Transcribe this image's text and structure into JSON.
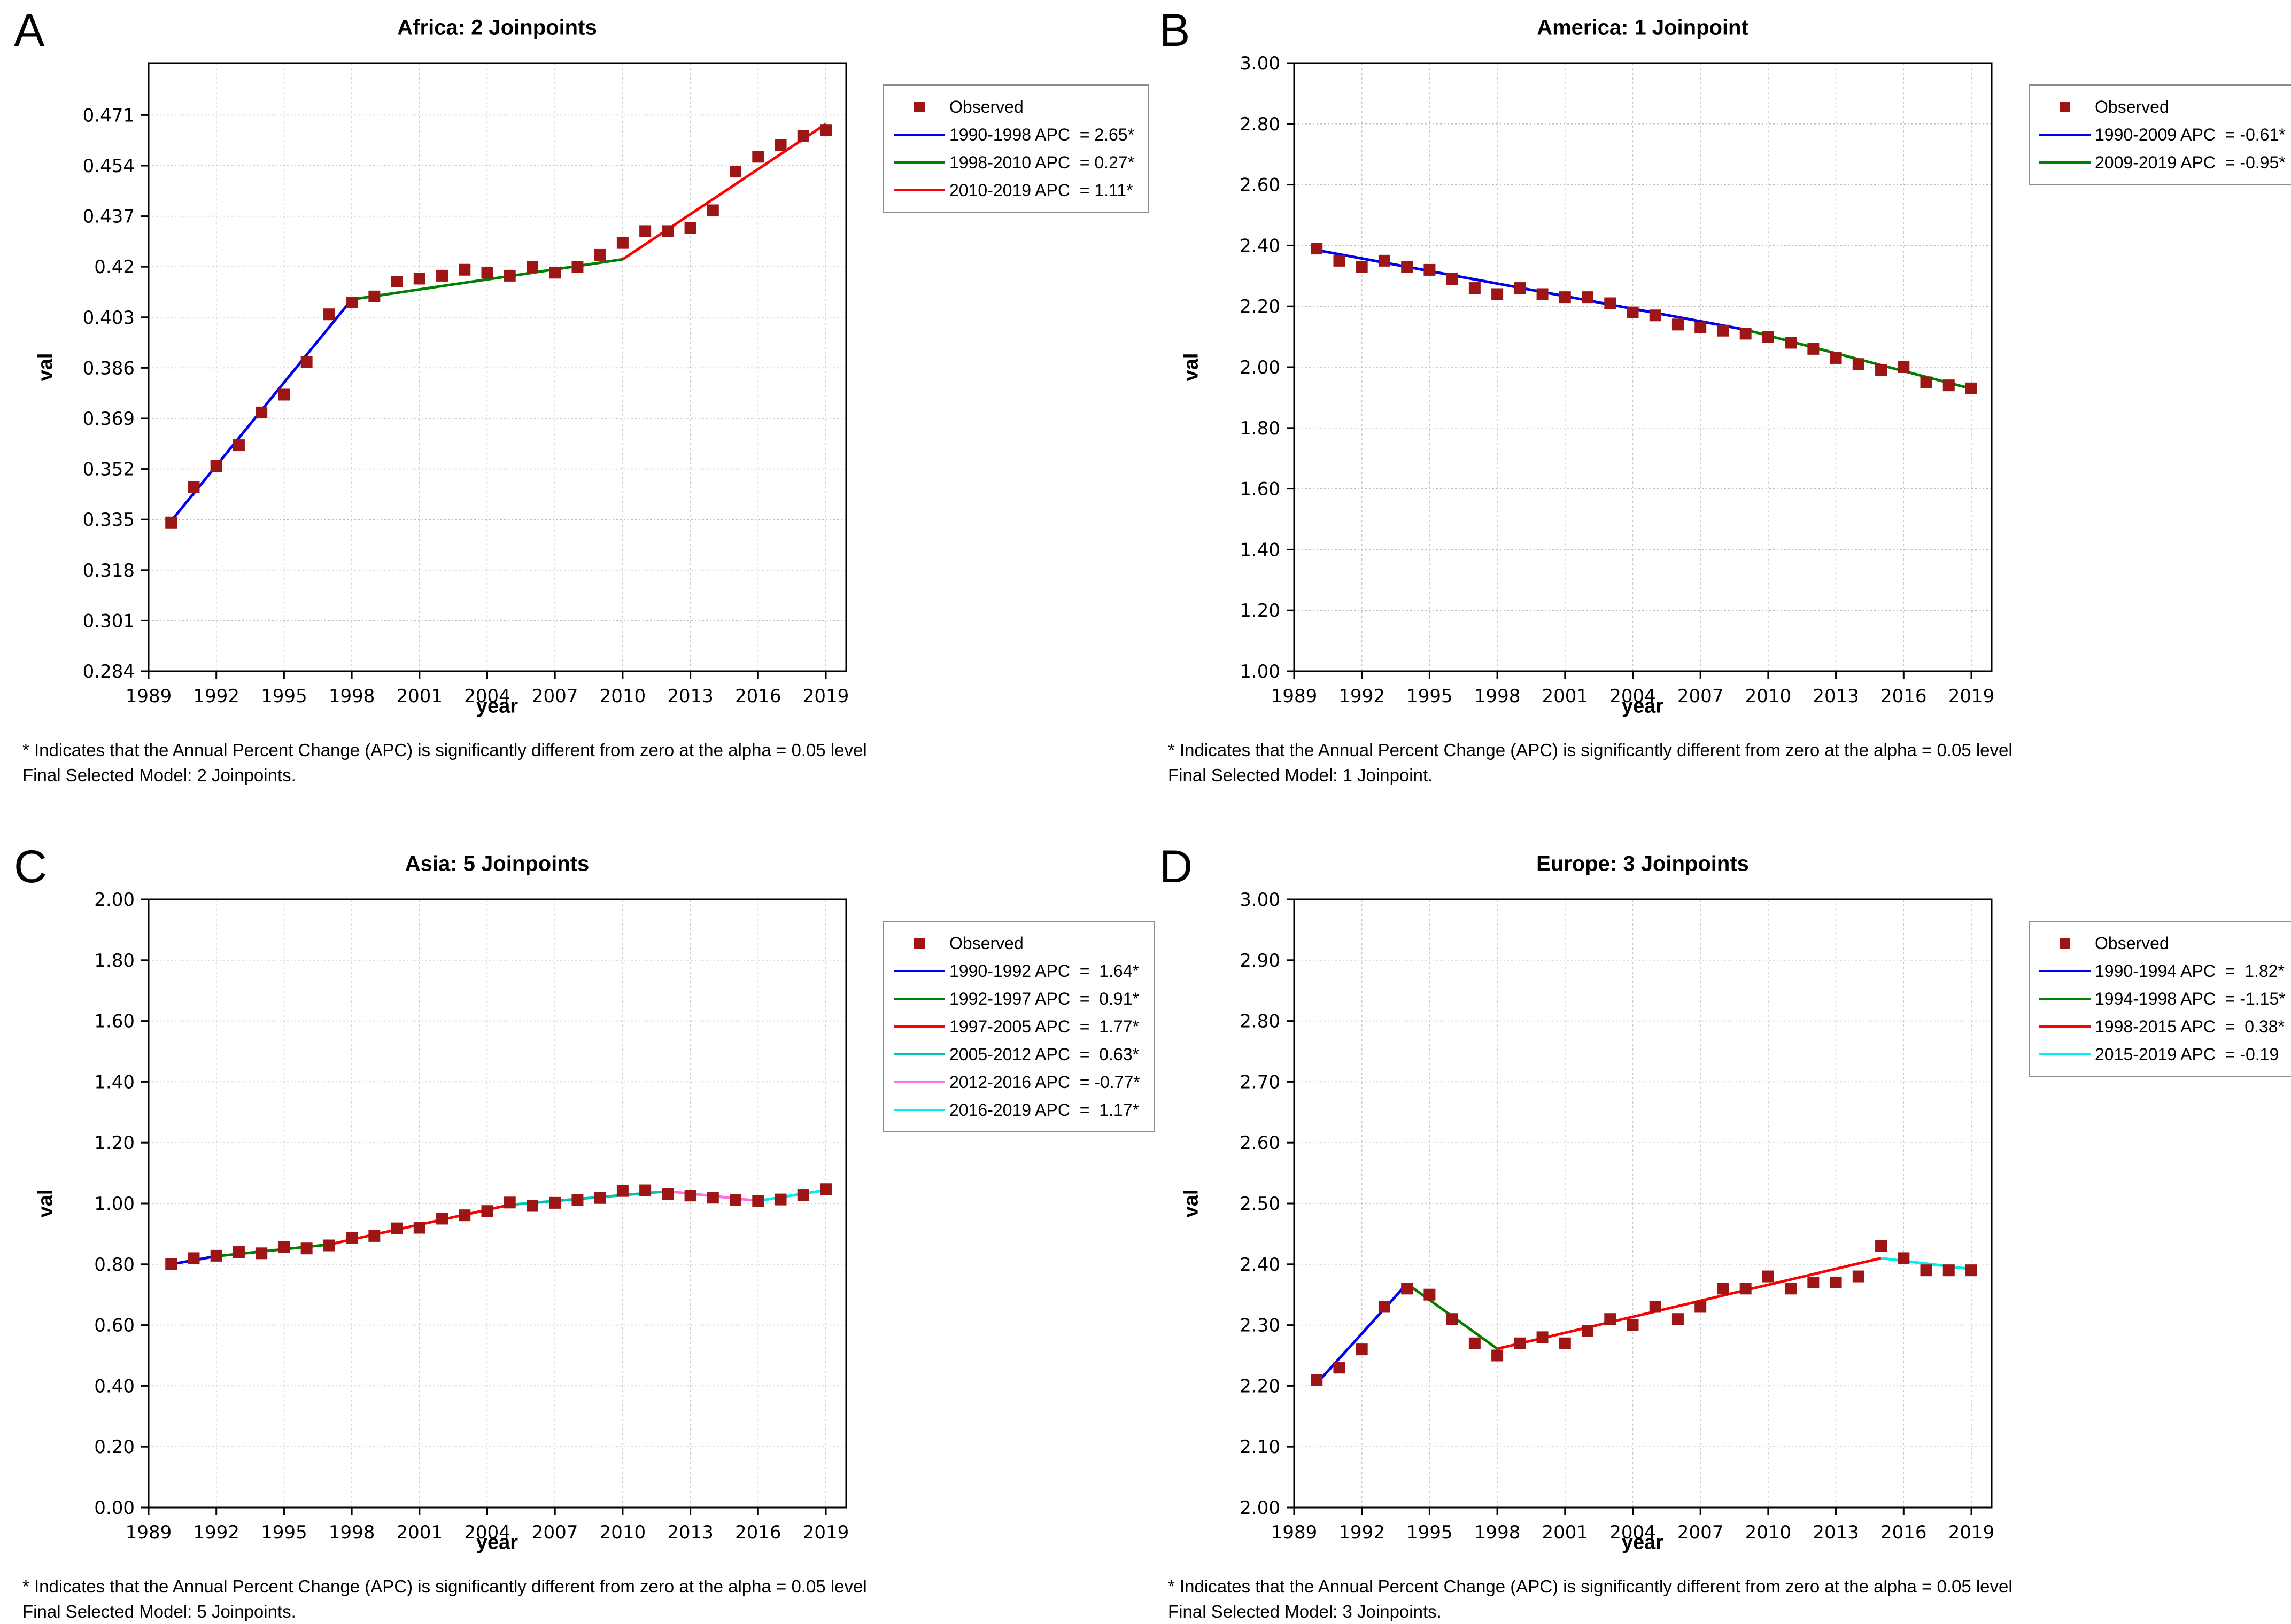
{
  "chart_data": [
    {
      "type": "line",
      "letter": "A",
      "title": "Africa: 2 Joinpoints",
      "xlabel": "year",
      "ylabel": "val",
      "grid": true,
      "legend_position": "top-right-outside",
      "xlim": [
        1989,
        2019.9
      ],
      "ylim": [
        0.284,
        0.4885
      ],
      "x_ticks": [
        1989,
        1992,
        1995,
        1998,
        2001,
        2004,
        2007,
        2010,
        2013,
        2016,
        2019
      ],
      "x_tick_labels": [
        "1989",
        "1992",
        "1995",
        "1998",
        "2001",
        "2004",
        "2007",
        "2010",
        "2013",
        "2016",
        "2019"
      ],
      "y_ticks": {
        "values": [
          0.471,
          0.454,
          0.437,
          0.42,
          0.403,
          0.386,
          0.369,
          0.352,
          0.335,
          0.318,
          0.301,
          0.284
        ],
        "labels": [
          "0.471",
          "0.454",
          "0.437",
          "0.42",
          "0.403",
          "0.386",
          "0.369",
          "0.352",
          "0.335",
          "0.318",
          "0.301",
          "0.284"
        ]
      },
      "marker_color": "#9e1515",
      "legend": {
        "observed": "Observed"
      },
      "observed": {
        "name": "Observed",
        "years": [
          1990,
          1991,
          1992,
          1993,
          1994,
          1995,
          1996,
          1997,
          1998,
          1999,
          2000,
          2001,
          2002,
          2003,
          2004,
          2005,
          2006,
          2007,
          2008,
          2009,
          2010,
          2011,
          2012,
          2013,
          2014,
          2015,
          2016,
          2017,
          2018,
          2019
        ],
        "values": [
          0.334,
          0.346,
          0.353,
          0.36,
          0.371,
          0.377,
          0.388,
          0.404,
          0.408,
          0.41,
          0.415,
          0.416,
          0.417,
          0.419,
          0.418,
          0.417,
          0.42,
          0.418,
          0.42,
          0.424,
          0.428,
          0.432,
          0.432,
          0.433,
          0.439,
          0.452,
          0.457,
          0.461,
          0.464,
          0.466
        ]
      },
      "segments": [
        {
          "range": "1990-1998",
          "apc": "2.65*",
          "label": "1990-1998 APC  = 2.65*",
          "color": "#0000f0",
          "x": [
            1990,
            1998
          ],
          "y": [
            0.3345,
            0.409
          ]
        },
        {
          "range": "1998-2010",
          "apc": "0.27*",
          "label": "1998-2010 APC  = 0.27*",
          "color": "#008000",
          "x": [
            1998,
            2010
          ],
          "y": [
            0.409,
            0.4225
          ]
        },
        {
          "range": "2010-2019",
          "apc": "1.11*",
          "label": "2010-2019 APC  = 1.11*",
          "color": "#ff0000",
          "x": [
            2010,
            2019
          ],
          "y": [
            0.4225,
            0.468
          ]
        }
      ],
      "footnotes": [
        "* Indicates that the Annual Percent Change (APC) is significantly different from zero at the alpha = 0.05 level",
        "Final Selected Model: 2 Joinpoints."
      ]
    },
    {
      "type": "line",
      "letter": "B",
      "title": "America: 1 Joinpoint",
      "xlabel": "year",
      "ylabel": "val",
      "grid": true,
      "legend_position": "top-right-outside",
      "xlim": [
        1989,
        2019.9
      ],
      "ylim": [
        1.0,
        3.0
      ],
      "x_ticks": [
        1989,
        1992,
        1995,
        1998,
        2001,
        2004,
        2007,
        2010,
        2013,
        2016,
        2019
      ],
      "x_tick_labels": [
        "1989",
        "1992",
        "1995",
        "1998",
        "2001",
        "2004",
        "2007",
        "2010",
        "2013",
        "2016",
        "2019"
      ],
      "y_ticks": {
        "values": [
          3.0,
          2.8,
          2.6,
          2.4,
          2.2,
          2.0,
          1.8,
          1.6,
          1.4,
          1.2,
          1.0
        ],
        "labels": [
          "3.00",
          "2.80",
          "2.60",
          "2.40",
          "2.20",
          "2.00",
          "1.80",
          "1.60",
          "1.40",
          "1.20",
          "1.00"
        ]
      },
      "marker_color": "#9e1515",
      "legend": {
        "observed": "Observed"
      },
      "observed": {
        "name": "Observed",
        "years": [
          1990,
          1991,
          1992,
          1993,
          1994,
          1995,
          1996,
          1997,
          1998,
          1999,
          2000,
          2001,
          2002,
          2003,
          2004,
          2005,
          2006,
          2007,
          2008,
          2009,
          2010,
          2011,
          2012,
          2013,
          2014,
          2015,
          2016,
          2017,
          2018,
          2019
        ],
        "values": [
          2.39,
          2.35,
          2.33,
          2.35,
          2.33,
          2.32,
          2.29,
          2.26,
          2.24,
          2.26,
          2.24,
          2.23,
          2.23,
          2.21,
          2.18,
          2.17,
          2.14,
          2.13,
          2.12,
          2.11,
          2.1,
          2.08,
          2.06,
          2.03,
          2.01,
          1.99,
          2.0,
          1.95,
          1.94,
          1.93
        ]
      },
      "segments": [
        {
          "range": "1990-2009",
          "apc": "-0.61*",
          "label": "1990-2009 APC  = -0.61*",
          "color": "#0000f0",
          "x": [
            1990,
            2009
          ],
          "y": [
            2.385,
            2.123
          ]
        },
        {
          "range": "2009-2019",
          "apc": "-0.95*",
          "label": "2009-2019 APC  = -0.95*",
          "color": "#008000",
          "x": [
            2009,
            2019
          ],
          "y": [
            2.123,
            1.929
          ]
        }
      ],
      "footnotes": [
        "* Indicates that the Annual Percent Change (APC) is significantly different from zero at the alpha = 0.05 level",
        "Final Selected Model: 1 Joinpoint."
      ]
    },
    {
      "type": "line",
      "letter": "C",
      "title": "Asia: 5 Joinpoints",
      "xlabel": "year",
      "ylabel": "val",
      "grid": true,
      "legend_position": "top-right-outside",
      "xlim": [
        1989,
        2019.9
      ],
      "ylim": [
        0.0,
        2.0
      ],
      "x_ticks": [
        1989,
        1992,
        1995,
        1998,
        2001,
        2004,
        2007,
        2010,
        2013,
        2016,
        2019
      ],
      "x_tick_labels": [
        "1989",
        "1992",
        "1995",
        "1998",
        "2001",
        "2004",
        "2007",
        "2010",
        "2013",
        "2016",
        "2019"
      ],
      "y_ticks": {
        "values": [
          2.0,
          1.8,
          1.6,
          1.4,
          1.2,
          1.0,
          0.8,
          0.6,
          0.4,
          0.2,
          0.0
        ],
        "labels": [
          "2.00",
          "1.80",
          "1.60",
          "1.40",
          "1.20",
          "1.00",
          "0.80",
          "0.60",
          "0.40",
          "0.20",
          "0.00"
        ]
      },
      "marker_color": "#9e1515",
      "legend": {
        "observed": "Observed"
      },
      "observed": {
        "name": "Observed",
        "years": [
          1990,
          1991,
          1992,
          1993,
          1994,
          1995,
          1996,
          1997,
          1998,
          1999,
          2000,
          2001,
          2002,
          2003,
          2004,
          2005,
          2006,
          2007,
          2008,
          2009,
          2010,
          2011,
          2012,
          2013,
          2014,
          2015,
          2016,
          2017,
          2018,
          2019
        ],
        "values": [
          0.8,
          0.82,
          0.828,
          0.84,
          0.836,
          0.857,
          0.852,
          0.862,
          0.886,
          0.893,
          0.918,
          0.92,
          0.95,
          0.961,
          0.975,
          1.003,
          0.992,
          1.002,
          1.011,
          1.018,
          1.041,
          1.043,
          1.031,
          1.026,
          1.019,
          1.011,
          1.008,
          1.013,
          1.028,
          1.047
        ]
      },
      "segments": [
        {
          "range": "1990-1992",
          "apc": "1.64*",
          "label": "1990-1992 APC  =  1.64*",
          "color": "#0000f0",
          "x": [
            1990,
            1992
          ],
          "y": [
            0.8,
            0.8265
          ]
        },
        {
          "range": "1992-1997",
          "apc": "0.91*",
          "label": "1992-1997 APC  =  0.91*",
          "color": "#008000",
          "x": [
            1992,
            1997
          ],
          "y": [
            0.8265,
            0.865
          ]
        },
        {
          "range": "1997-2005",
          "apc": "1.77*",
          "label": "1997-2005 APC  =  1.77*",
          "color": "#ff0000",
          "x": [
            1997,
            2005
          ],
          "y": [
            0.865,
            0.9955
          ]
        },
        {
          "range": "2005-2012",
          "apc": "0.63*",
          "label": "2005-2012 APC  =  0.63*",
          "color": "#00c3b0",
          "x": [
            2005,
            2012
          ],
          "y": [
            0.9955,
            1.04
          ]
        },
        {
          "range": "2012-2016",
          "apc": "-0.77*",
          "label": "2012-2016 APC  = -0.77*",
          "color": "#ff70e8",
          "x": [
            2012,
            2016
          ],
          "y": [
            1.04,
            1.0085
          ]
        },
        {
          "range": "2016-2019",
          "apc": "1.17*",
          "label": "2016-2019 APC  =  1.17*",
          "color": "#00eeee",
          "x": [
            2016,
            2019
          ],
          "y": [
            1.0085,
            1.044
          ]
        }
      ],
      "footnotes": [
        "* Indicates that the Annual Percent Change (APC) is significantly different from zero at the alpha = 0.05 level",
        "Final Selected Model: 5 Joinpoints."
      ]
    },
    {
      "type": "line",
      "letter": "D",
      "title": "Europe: 3 Joinpoints",
      "xlabel": "year",
      "ylabel": "val",
      "grid": true,
      "legend_position": "top-right-outside",
      "xlim": [
        1989,
        2019.9
      ],
      "ylim": [
        2.0,
        3.0
      ],
      "x_ticks": [
        1989,
        1992,
        1995,
        1998,
        2001,
        2004,
        2007,
        2010,
        2013,
        2016,
        2019
      ],
      "x_tick_labels": [
        "1989",
        "1992",
        "1995",
        "1998",
        "2001",
        "2004",
        "2007",
        "2010",
        "2013",
        "2016",
        "2019"
      ],
      "y_ticks": {
        "values": [
          3.0,
          2.9,
          2.8,
          2.7,
          2.6,
          2.5,
          2.4,
          2.3,
          2.2,
          2.1,
          2.0
        ],
        "labels": [
          "3.00",
          "2.90",
          "2.80",
          "2.70",
          "2.60",
          "2.50",
          "2.40",
          "2.30",
          "2.20",
          "2.10",
          "2.00"
        ]
      },
      "marker_color": "#9e1515",
      "legend": {
        "observed": "Observed"
      },
      "observed": {
        "name": "Observed",
        "years": [
          1990,
          1991,
          1992,
          1993,
          1994,
          1995,
          1996,
          1997,
          1998,
          1999,
          2000,
          2001,
          2002,
          2003,
          2004,
          2005,
          2006,
          2007,
          2008,
          2009,
          2010,
          2011,
          2012,
          2013,
          2014,
          2015,
          2016,
          2017,
          2018,
          2019
        ],
        "values": [
          2.21,
          2.23,
          2.26,
          2.33,
          2.36,
          2.35,
          2.31,
          2.27,
          2.25,
          2.27,
          2.28,
          2.27,
          2.29,
          2.31,
          2.3,
          2.33,
          2.31,
          2.33,
          2.36,
          2.36,
          2.38,
          2.36,
          2.37,
          2.37,
          2.38,
          2.43,
          2.41,
          2.39,
          2.39,
          2.39
        ]
      },
      "segments": [
        {
          "range": "1990-1994",
          "apc": "1.82*",
          "label": "1990-1994 APC  =  1.82*",
          "color": "#0000f0",
          "x": [
            1990,
            1994
          ],
          "y": [
            2.204,
            2.368
          ]
        },
        {
          "range": "1994-1998",
          "apc": "-1.15*",
          "label": "1994-1998 APC  = -1.15*",
          "color": "#008000",
          "x": [
            1994,
            1998
          ],
          "y": [
            2.368,
            2.261
          ]
        },
        {
          "range": "1998-2015",
          "apc": "0.38*",
          "label": "1998-2015 APC  =  0.38*",
          "color": "#ff0000",
          "x": [
            1998,
            2015
          ],
          "y": [
            2.261,
            2.41
          ]
        },
        {
          "range": "2015-2019",
          "apc": "-0.19",
          "label": "2015-2019 APC  = -0.19",
          "color": "#00eeee",
          "x": [
            2015,
            2019
          ],
          "y": [
            2.41,
            2.392
          ]
        }
      ],
      "footnotes": [
        "* Indicates that the Annual Percent Change (APC) is significantly different from zero at the alpha = 0.05 level",
        "Final Selected Model: 3 Joinpoints."
      ]
    }
  ]
}
